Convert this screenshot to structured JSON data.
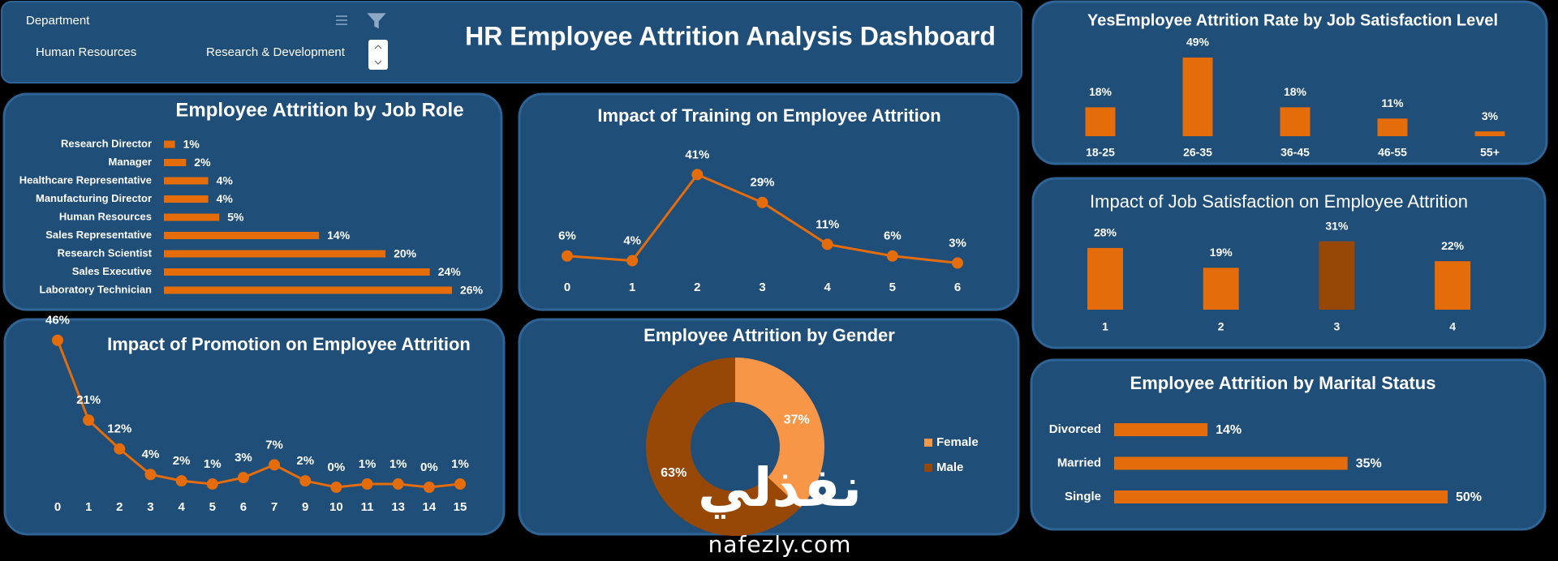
{
  "header": {
    "title": "HR Employee Attrition Analysis Dashboard",
    "slicer": {
      "title": "Department",
      "items": [
        "Human Resources",
        "Research & Development"
      ]
    }
  },
  "watermark": {
    "arabic": "نفذلي",
    "site": "nafezly.com"
  },
  "chart_data": [
    {
      "type": "hbar",
      "title": "Employee Attrition by Job Role",
      "color": "#e46c0a",
      "categories": [
        "Research Director",
        "Manager",
        "Healthcare Representative",
        "Manufacturing Director",
        "Human Resources",
        "Sales Representative",
        "Research Scientist",
        "Sales Executive",
        "Laboratory Technician"
      ],
      "values": [
        1,
        2,
        4,
        4,
        5,
        14,
        20,
        24,
        26
      ],
      "value_labels": [
        "1%",
        "2%",
        "4%",
        "4%",
        "5%",
        "14%",
        "20%",
        "24%",
        "26%"
      ]
    },
    {
      "type": "line",
      "title": "Impact of Training on Employee Attrition",
      "color": "#e46c0a",
      "categories": [
        "0",
        "1",
        "2",
        "3",
        "4",
        "5",
        "6"
      ],
      "values": [
        6,
        4,
        41,
        29,
        11,
        6,
        3
      ],
      "value_labels": [
        "6%",
        "4%",
        "41%",
        "29%",
        "11%",
        "6%",
        "3%"
      ]
    },
    {
      "type": "line",
      "title": "Impact of Promotion on Employee Attrition",
      "color": "#e46c0a",
      "categories": [
        "0",
        "1",
        "2",
        "3",
        "4",
        "5",
        "6",
        "7",
        "9",
        "10",
        "11",
        "13",
        "14",
        "15"
      ],
      "values": [
        46,
        21,
        12,
        4,
        2,
        1,
        3,
        7,
        2,
        0,
        1,
        1,
        0,
        1
      ],
      "value_labels": [
        "46%",
        "21%",
        "12%",
        "4%",
        "2%",
        "1%",
        "3%",
        "7%",
        "2%",
        "0%",
        "1%",
        "1%",
        "0%",
        "1%"
      ]
    },
    {
      "type": "pie",
      "title": "Employee Attrition by Gender",
      "legend": "right",
      "categories": [
        "Female",
        "Male"
      ],
      "values": [
        37,
        63
      ],
      "value_labels": [
        "37%",
        "63%"
      ],
      "colors": [
        "#f79646",
        "#974706"
      ]
    },
    {
      "type": "bar",
      "title": "YesEmployee Attrition Rate by Job Satisfaction Level",
      "color": "#e46c0a",
      "categories": [
        "18-25",
        "26-35",
        "36-45",
        "46-55",
        "55+"
      ],
      "values": [
        18,
        49,
        18,
        11,
        3
      ],
      "value_labels": [
        "18%",
        "49%",
        "18%",
        "11%",
        "3%"
      ]
    },
    {
      "type": "bar",
      "title": "Impact of Job Satisfaction on Employee Attrition",
      "colors": [
        "#e46c0a",
        "#e46c0a",
        "#974706",
        "#e46c0a"
      ],
      "categories": [
        "1",
        "2",
        "3",
        "4"
      ],
      "values": [
        28,
        19,
        31,
        22
      ],
      "value_labels": [
        "28%",
        "19%",
        "31%",
        "22%"
      ]
    },
    {
      "type": "hbar",
      "title": "Employee Attrition by Marital Status",
      "color": "#e46c0a",
      "categories": [
        "Divorced",
        "Married",
        "Single"
      ],
      "values": [
        14,
        35,
        50
      ],
      "value_labels": [
        "14%",
        "35%",
        "50%"
      ]
    }
  ]
}
